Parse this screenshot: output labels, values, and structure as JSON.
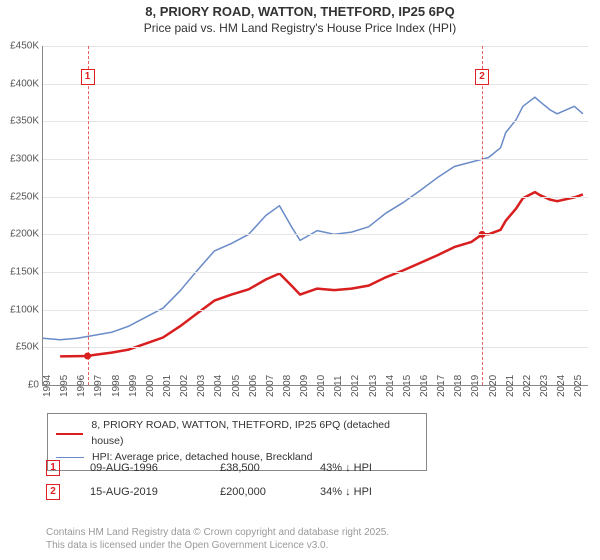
{
  "title": {
    "line1": "8, PRIORY ROAD, WATTON, THETFORD, IP25 6PQ",
    "line2": "Price paid vs. HM Land Registry's House Price Index (HPI)",
    "fontsize_line1": 13,
    "fontsize_line2": 12
  },
  "chart": {
    "type": "line",
    "background_color": "#ffffff",
    "grid_color": "#e5e5e5",
    "axis_color": "#888888",
    "ylim": [
      0,
      450000
    ],
    "ytick_step": 50000,
    "yticklabels": [
      "£0",
      "£50K",
      "£100K",
      "£150K",
      "£200K",
      "£250K",
      "£300K",
      "£350K",
      "£400K",
      "£450K"
    ],
    "xlim": [
      1994,
      2025.8
    ],
    "xticks": [
      1994,
      1995,
      1996,
      1997,
      1998,
      1999,
      2000,
      2001,
      2002,
      2003,
      2004,
      2005,
      2006,
      2007,
      2008,
      2009,
      2010,
      2011,
      2012,
      2013,
      2014,
      2015,
      2016,
      2017,
      2018,
      2019,
      2020,
      2021,
      2022,
      2023,
      2024,
      2025
    ],
    "label_fontsize": 10,
    "series": [
      {
        "name": "price_paid",
        "label": "8, PRIORY ROAD, WATTON, THETFORD, IP25 6PQ (detached house)",
        "color": "#d81e1e",
        "line_width": 2.5,
        "points": [
          [
            1995,
            38000
          ],
          [
            1996.6,
            38500
          ],
          [
            1997,
            40000
          ],
          [
            1998,
            43000
          ],
          [
            1999,
            47000
          ],
          [
            2000,
            55000
          ],
          [
            2001,
            63000
          ],
          [
            2002,
            78000
          ],
          [
            2003,
            95000
          ],
          [
            2004,
            112000
          ],
          [
            2005,
            120000
          ],
          [
            2006,
            127000
          ],
          [
            2007,
            140000
          ],
          [
            2007.8,
            148000
          ],
          [
            2008.5,
            132000
          ],
          [
            2009,
            120000
          ],
          [
            2010,
            128000
          ],
          [
            2011,
            126000
          ],
          [
            2012,
            128000
          ],
          [
            2013,
            132000
          ],
          [
            2014,
            143000
          ],
          [
            2015,
            152000
          ],
          [
            2016,
            162000
          ],
          [
            2017,
            172000
          ],
          [
            2018,
            183000
          ],
          [
            2019,
            190000
          ],
          [
            2019.62,
            200000
          ],
          [
            2020,
            200000
          ],
          [
            2020.7,
            206000
          ],
          [
            2021,
            218000
          ],
          [
            2021.6,
            234000
          ],
          [
            2022,
            248000
          ],
          [
            2022.7,
            256000
          ],
          [
            2023,
            252000
          ],
          [
            2023.6,
            246000
          ],
          [
            2024,
            244000
          ],
          [
            2024.6,
            247000
          ],
          [
            2025,
            249000
          ],
          [
            2025.5,
            253000
          ]
        ]
      },
      {
        "name": "hpi",
        "label": "HPI: Average price, detached house, Breckland",
        "color": "#6a8bc8",
        "line_width": 1.5,
        "points": [
          [
            1994,
            62000
          ],
          [
            1995,
            60000
          ],
          [
            1996,
            62000
          ],
          [
            1997,
            66000
          ],
          [
            1998,
            70000
          ],
          [
            1999,
            78000
          ],
          [
            2000,
            90000
          ],
          [
            2001,
            102000
          ],
          [
            2002,
            125000
          ],
          [
            2003,
            152000
          ],
          [
            2004,
            178000
          ],
          [
            2005,
            188000
          ],
          [
            2006,
            200000
          ],
          [
            2007,
            225000
          ],
          [
            2007.8,
            238000
          ],
          [
            2008.5,
            210000
          ],
          [
            2009,
            192000
          ],
          [
            2010,
            205000
          ],
          [
            2011,
            200000
          ],
          [
            2012,
            203000
          ],
          [
            2013,
            210000
          ],
          [
            2014,
            228000
          ],
          [
            2015,
            242000
          ],
          [
            2016,
            258000
          ],
          [
            2017,
            275000
          ],
          [
            2018,
            290000
          ],
          [
            2019,
            296000
          ],
          [
            2020,
            302000
          ],
          [
            2020.7,
            315000
          ],
          [
            2021,
            335000
          ],
          [
            2021.6,
            352000
          ],
          [
            2022,
            370000
          ],
          [
            2022.7,
            382000
          ],
          [
            2023,
            376000
          ],
          [
            2023.6,
            365000
          ],
          [
            2024,
            360000
          ],
          [
            2024.6,
            366000
          ],
          [
            2025,
            370000
          ],
          [
            2025.5,
            360000
          ]
        ]
      }
    ],
    "markers": [
      {
        "id": "1",
        "x": 1996.6,
        "box_y": 420000,
        "point_series": "price_paid"
      },
      {
        "id": "2",
        "x": 2019.62,
        "box_y": 420000,
        "point_series": "price_paid"
      }
    ],
    "marker_box_border": "#e02020",
    "marker_line_color": "#e02020"
  },
  "legend": {
    "items": [
      {
        "swatch": "red",
        "text": "8, PRIORY ROAD, WATTON, THETFORD, IP25 6PQ (detached house)"
      },
      {
        "swatch": "blue",
        "text": "HPI: Average price, detached house, Breckland"
      }
    ]
  },
  "transactions": [
    {
      "id": "1",
      "date": "09-AUG-1996",
      "price": "£38,500",
      "delta": "43% ↓ HPI"
    },
    {
      "id": "2",
      "date": "15-AUG-2019",
      "price": "£200,000",
      "delta": "34% ↓ HPI"
    }
  ],
  "footer": {
    "line1": "Contains HM Land Registry data © Crown copyright and database right 2025.",
    "line2": "This data is licensed under the Open Government Licence v3.0."
  }
}
